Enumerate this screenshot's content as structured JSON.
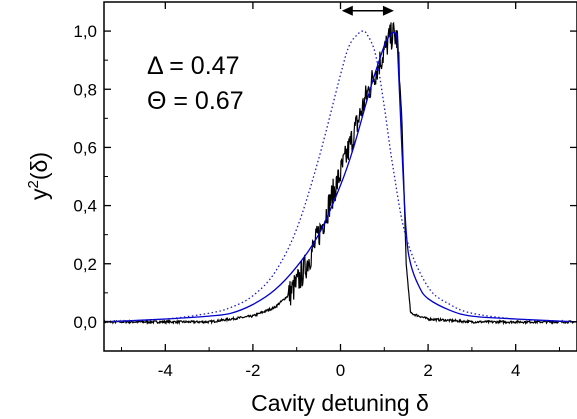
{
  "chart_data": {
    "type": "line",
    "title": "",
    "xlabel": "Cavity detuning δ",
    "ylabel": "y²(δ)",
    "ylabel_base": "y",
    "ylabel_sup": "2",
    "ylabel_arg": "(δ)",
    "xlim": [
      -5.4,
      5.4
    ],
    "ylim": [
      -0.1,
      1.1
    ],
    "x_ticks": [
      -4,
      -2,
      0,
      2,
      4
    ],
    "x_tick_labels": [
      "-4",
      "-2",
      "0",
      "2",
      "4"
    ],
    "y_ticks": [
      0.0,
      0.2,
      0.4,
      0.6,
      0.8,
      1.0
    ],
    "y_tick_labels": [
      "0,0",
      "0,2",
      "0,4",
      "0,6",
      "0,8",
      "1,0"
    ],
    "grid": false,
    "annotations": [
      {
        "text": "Δ = 0.47"
      },
      {
        "text": "Θ = 0.67"
      }
    ],
    "arrow": {
      "x_start": 0.03,
      "x_end": 1.22,
      "y": 1.07,
      "style": "double-headed"
    },
    "series": [
      {
        "color": "#000000",
        "style": "solid-noisy",
        "x": [
          -5.4,
          -3.0,
          -2.5,
          -2.0,
          -1.5,
          -1.2,
          -1.0,
          -0.8,
          -0.6,
          -0.4,
          -0.2,
          0.0,
          0.2,
          0.4,
          0.6,
          0.8,
          1.0,
          1.1,
          1.2,
          1.3,
          1.4,
          1.5,
          1.6,
          2.0,
          3.0,
          5.4
        ],
        "y": [
          0.0,
          0.0,
          0.01,
          0.02,
          0.05,
          0.09,
          0.13,
          0.19,
          0.26,
          0.34,
          0.43,
          0.51,
          0.6,
          0.69,
          0.78,
          0.86,
          0.93,
          0.97,
          0.99,
          0.97,
          0.7,
          0.2,
          0.03,
          0.01,
          0.0,
          0.0
        ]
      },
      {
        "color": "#0000cc",
        "style": "solid",
        "x": [
          -5.4,
          -4.0,
          -3.0,
          -2.5,
          -2.0,
          -1.5,
          -1.0,
          -0.5,
          0.0,
          0.3,
          0.6,
          0.8,
          1.0,
          1.1,
          1.2,
          1.25,
          1.3,
          1.4,
          1.5,
          1.6,
          1.8,
          2.0,
          2.5,
          3.0,
          4.0,
          5.4
        ],
        "y": [
          0.0,
          0.01,
          0.02,
          0.03,
          0.06,
          0.11,
          0.19,
          0.3,
          0.47,
          0.6,
          0.76,
          0.86,
          0.95,
          0.98,
          0.995,
          0.99,
          0.95,
          0.6,
          0.31,
          0.2,
          0.12,
          0.08,
          0.04,
          0.02,
          0.01,
          0.0
        ]
      },
      {
        "color": "#1a1acc",
        "style": "dotted",
        "x": [
          -5.4,
          -4.0,
          -3.0,
          -2.5,
          -2.0,
          -1.5,
          -1.0,
          -0.5,
          0.0,
          0.2,
          0.4,
          0.5,
          0.6,
          0.8,
          1.0,
          1.2,
          1.5,
          2.0,
          2.5,
          3.0,
          4.0,
          5.4
        ],
        "y": [
          0.0,
          0.01,
          0.03,
          0.05,
          0.09,
          0.17,
          0.32,
          0.56,
          0.85,
          0.95,
          0.99,
          1.0,
          0.99,
          0.92,
          0.74,
          0.53,
          0.29,
          0.12,
          0.06,
          0.03,
          0.01,
          0.0
        ]
      }
    ]
  }
}
